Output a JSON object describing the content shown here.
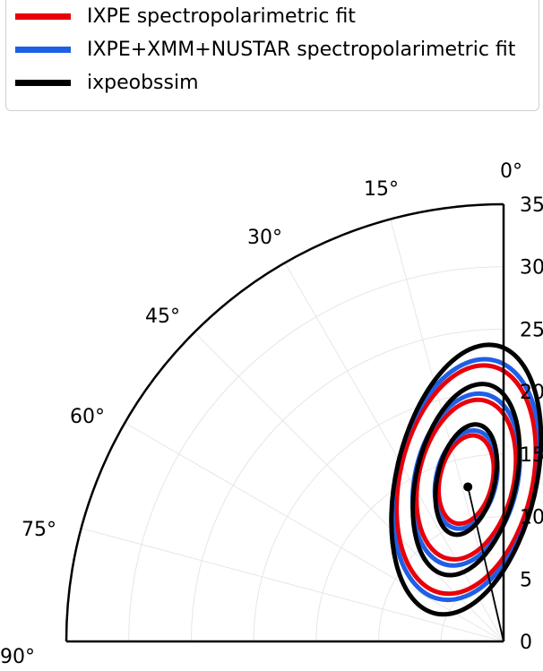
{
  "legend": {
    "items": [
      {
        "label": "IXPE spectropolarimetric fit",
        "color": "#e8000b"
      },
      {
        "label": "IXPE+XMM+NUSTAR spectropolarimetric fit",
        "color": "#1f5fe6"
      },
      {
        "label": "ixpeobssim",
        "color": "#000000"
      }
    ]
  },
  "chart_data": {
    "type": "polar",
    "theta_range_deg": [
      0,
      90
    ],
    "r_range": [
      0,
      35
    ],
    "theta_ticks": [
      "0°",
      "15°",
      "30°",
      "45°",
      "60°",
      "75°",
      "90°"
    ],
    "r_ticks": [
      "0",
      "5",
      "10",
      "15",
      "20",
      "25",
      "30",
      "35"
    ],
    "grid": true,
    "legend_position": "top",
    "point": {
      "theta_deg": 13,
      "r": 12.7
    },
    "ellipse_center": {
      "theta_deg": 13,
      "r": 13.3
    },
    "series": [
      {
        "name": "IXPE spectropolarimetric fit",
        "color": "#e8000b",
        "contours": [
          {
            "semi_major": 3.6,
            "semi_minor": 2.1
          },
          {
            "semi_major": 6.5,
            "semi_minor": 3.8
          },
          {
            "semi_major": 9.3,
            "semi_minor": 5.3
          }
        ]
      },
      {
        "name": "IXPE+XMM+NUSTAR spectropolarimetric fit",
        "color": "#1f5fe6",
        "contours": [
          {
            "semi_major": 4.0,
            "semi_minor": 2.4
          },
          {
            "semi_major": 7.0,
            "semi_minor": 4.1
          },
          {
            "semi_major": 9.8,
            "semi_minor": 5.6
          }
        ]
      },
      {
        "name": "ixpeobssim",
        "color": "#000000",
        "contours": [
          {
            "semi_major": 4.5,
            "semi_minor": 2.3
          },
          {
            "semi_major": 7.8,
            "semi_minor": 4.0
          },
          {
            "semi_major": 11.0,
            "semi_minor": 5.6
          }
        ]
      }
    ]
  }
}
